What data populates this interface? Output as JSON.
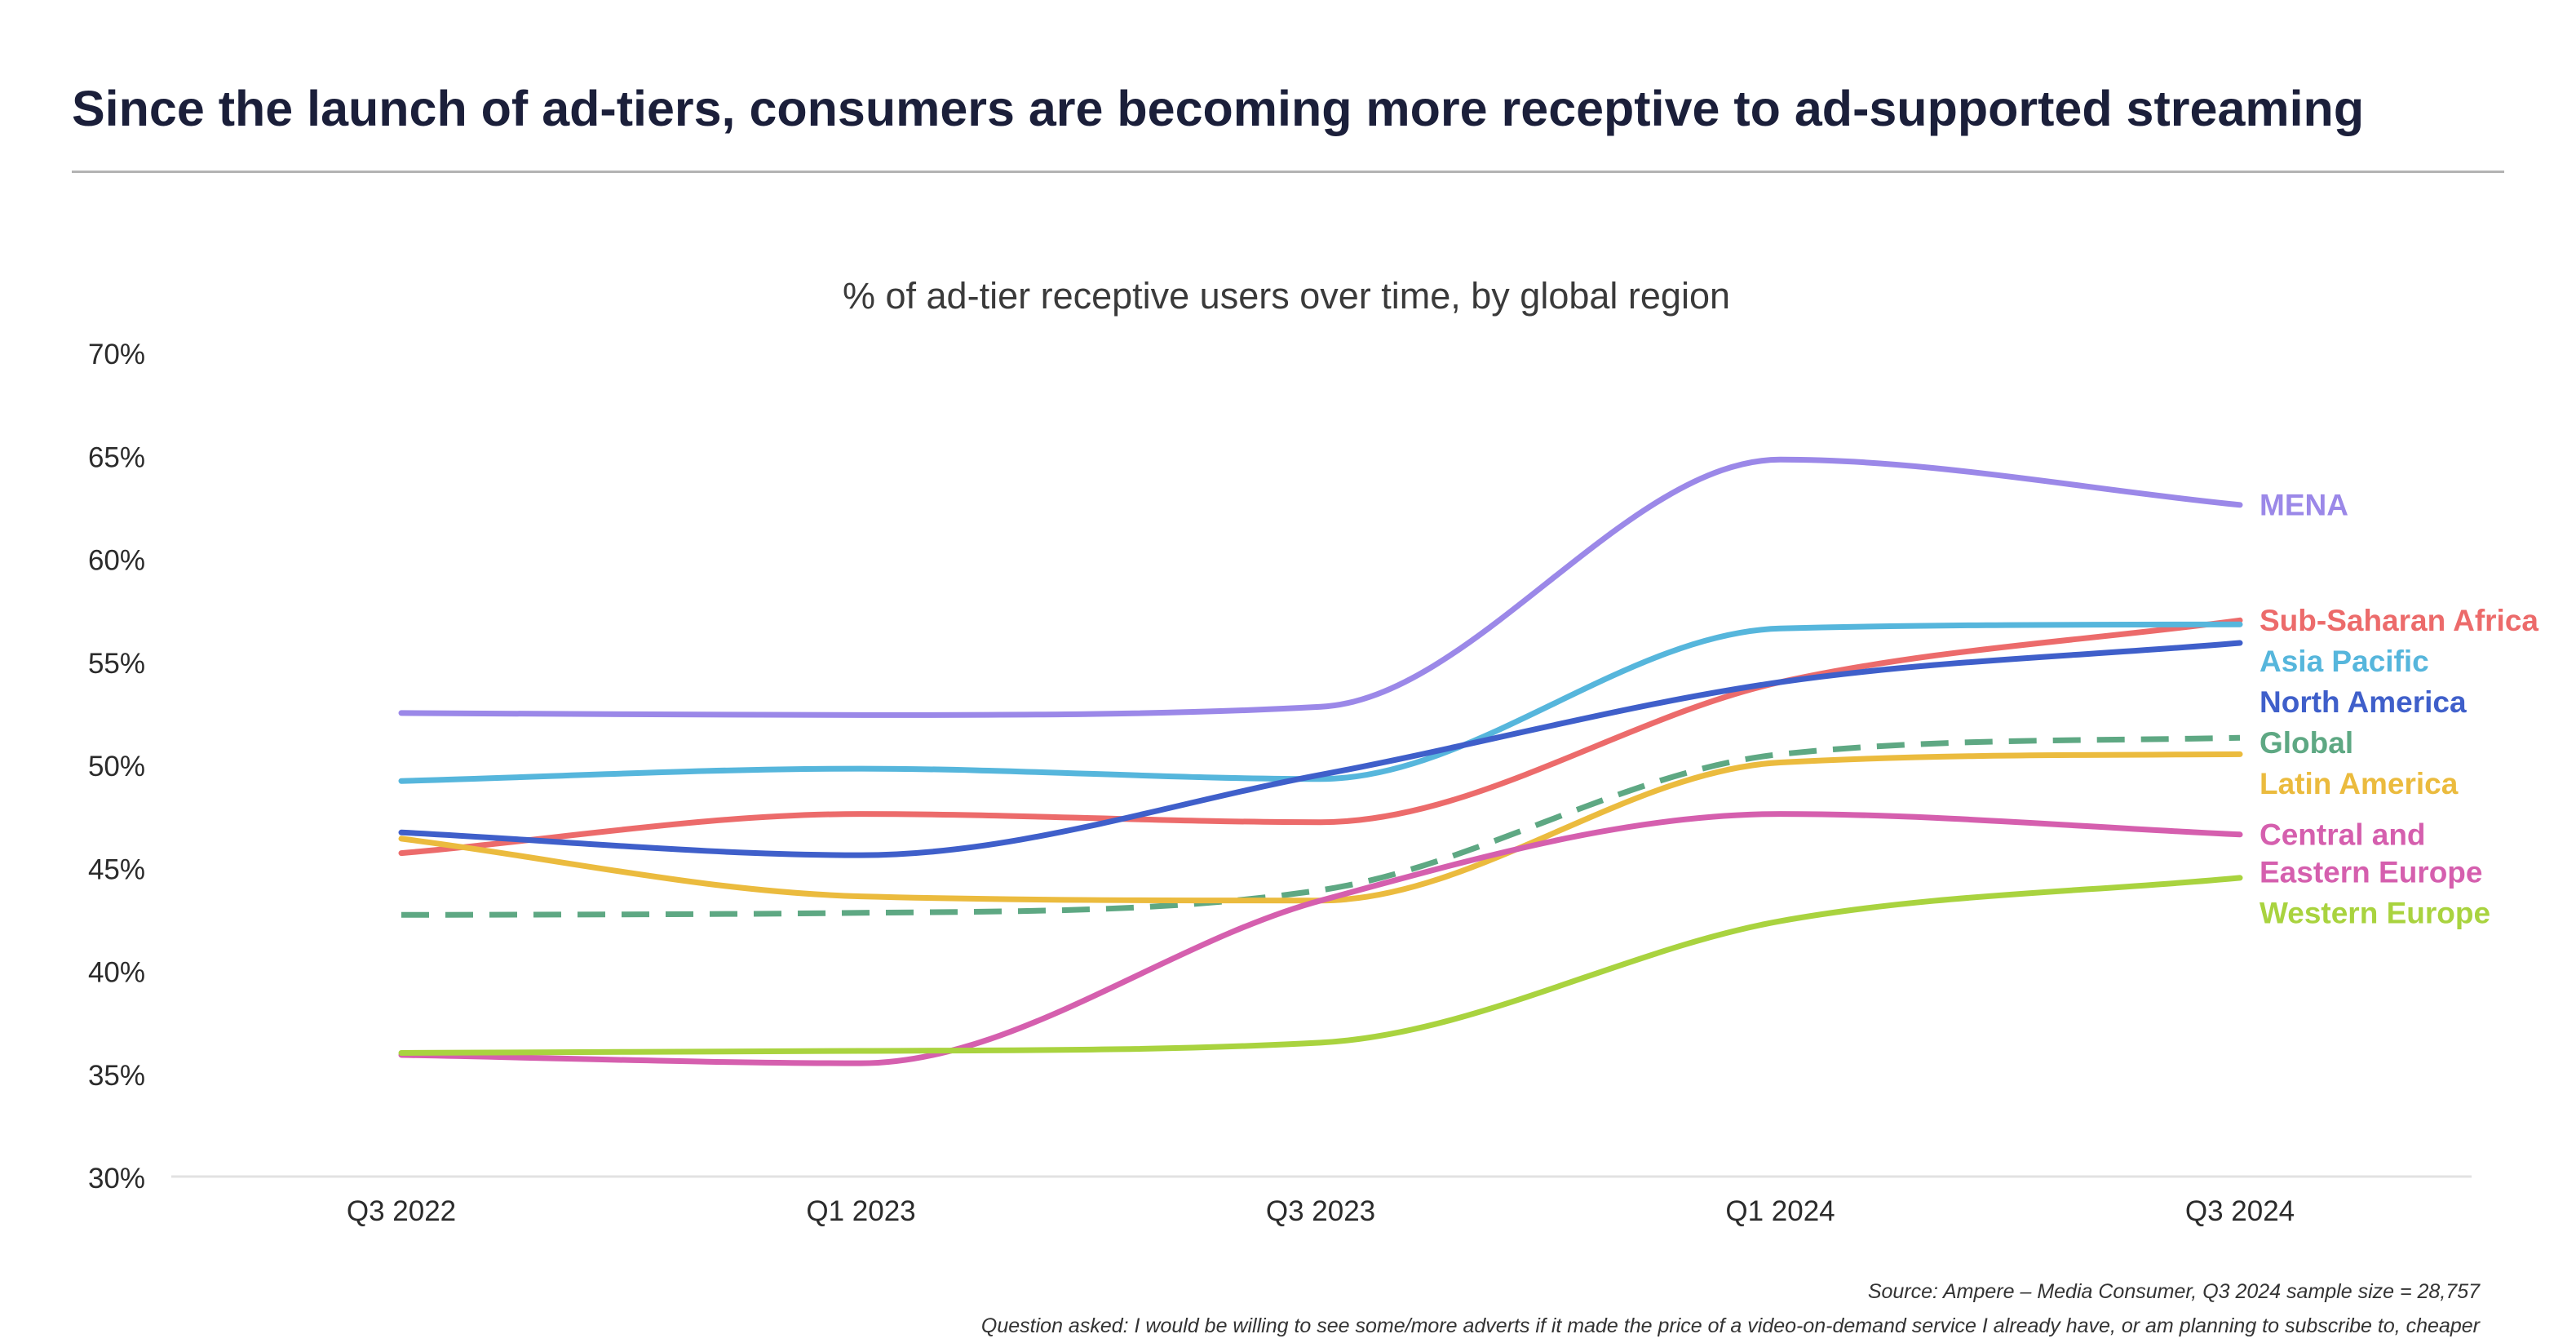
{
  "headline": "Since the launch of ad-tiers, consumers are becoming more receptive to ad-supported streaming",
  "footer": {
    "source": "Source: Ampere – Media Consumer, Q3 2024 sample size = 28,757",
    "question": "Question asked: I would be willing to see some/more adverts if it made the price of a video-on-demand service I already have, or am planning to subscribe to, cheaper"
  },
  "chart_data": {
    "type": "line",
    "title": "% of ad-tier receptive users over time, by global region",
    "xlabel": "",
    "ylabel": "",
    "categories": [
      "Q3 2022",
      "Q1 2023",
      "Q3 2023",
      "Q1 2024",
      "Q3 2024"
    ],
    "ylim": [
      30,
      70
    ],
    "yticks": [
      30,
      35,
      40,
      45,
      50,
      55,
      60,
      65,
      70
    ],
    "ytick_labels": [
      "30%",
      "35%",
      "40%",
      "45%",
      "50%",
      "55%",
      "60%",
      "65%",
      "70%"
    ],
    "grid": false,
    "legend": "direct labels at line ends (right)",
    "series": [
      {
        "name": "MENA",
        "values": [
          52.5,
          52.4,
          52.8,
          64.8,
          62.6
        ],
        "color": "#9b88e8",
        "dashed": false
      },
      {
        "name": "Sub-Saharan Africa",
        "values": [
          45.7,
          47.6,
          47.2,
          54.0,
          57.0
        ],
        "color": "#ec6b6b",
        "dashed": false
      },
      {
        "name": "Asia Pacific",
        "values": [
          49.2,
          49.8,
          49.3,
          56.6,
          56.8
        ],
        "color": "#56b6dc",
        "dashed": false
      },
      {
        "name": "North America",
        "values": [
          46.7,
          45.6,
          49.5,
          54.0,
          55.9
        ],
        "color": "#3f5fca",
        "dashed": false
      },
      {
        "name": "Global",
        "values": [
          42.7,
          42.8,
          43.9,
          50.5,
          51.3
        ],
        "color": "#5ea883",
        "dashed": true
      },
      {
        "name": "Latin America",
        "values": [
          46.4,
          43.6,
          43.4,
          50.1,
          50.5
        ],
        "color": "#ebbb3e",
        "dashed": false
      },
      {
        "name": "Central and Eastern Europe",
        "label_lines": [
          "Central and",
          "Eastern Europe"
        ],
        "values": [
          35.9,
          35.5,
          43.4,
          47.6,
          46.6
        ],
        "color": "#d55fae",
        "dashed": false
      },
      {
        "name": "Western Europe",
        "values": [
          36.0,
          36.1,
          36.5,
          42.4,
          44.5
        ],
        "color": "#a9d33f",
        "dashed": false
      }
    ]
  }
}
